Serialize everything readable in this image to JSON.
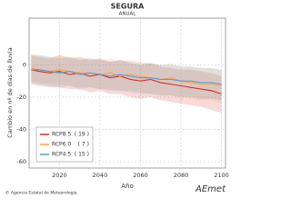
{
  "chart_data": {
    "type": "line",
    "title": "SEGURA",
    "subtitle": "ANUAL",
    "xlabel": "Año",
    "ylabel": "Cambio en nº de días de lluvia",
    "x": [
      2006,
      2010,
      2015,
      2020,
      2025,
      2030,
      2035,
      2040,
      2045,
      2050,
      2055,
      2060,
      2065,
      2070,
      2075,
      2080,
      2085,
      2090,
      2095,
      2100
    ],
    "xlim": [
      2005,
      2102
    ],
    "xticks": [
      2020,
      2040,
      2060,
      2080,
      2100
    ],
    "ylim": [
      -64,
      29
    ],
    "yticks": [
      -60,
      -40,
      -20,
      0
    ],
    "grid": true,
    "legend": "lower left",
    "series": [
      {
        "name": "RCP8.5",
        "count": "( 19 )",
        "color": "#d73027",
        "values": [
          -3,
          -4,
          -5,
          -4,
          -6,
          -5,
          -7,
          -6,
          -8,
          -7,
          -9,
          -10,
          -9,
          -11,
          -12,
          -13,
          -14,
          -15,
          -16,
          -18
        ],
        "lower": [
          -12,
          -13,
          -14,
          -14,
          -15,
          -15,
          -17,
          -16,
          -18,
          -18,
          -20,
          -21,
          -20,
          -22,
          -23,
          -24,
          -25,
          -26,
          -28,
          -30
        ],
        "upper": [
          6,
          5,
          4,
          6,
          4,
          5,
          3,
          4,
          2,
          3,
          1,
          0,
          1,
          -1,
          -2,
          -3,
          -3,
          -4,
          -5,
          -7
        ]
      },
      {
        "name": "RCP6.0",
        "count": "( 7 )",
        "color": "#f4a446",
        "values": [
          -2,
          -3,
          -4,
          -3,
          -4,
          -5,
          -5,
          -6,
          -5,
          -7,
          -6,
          -7,
          -8,
          -9,
          -8,
          -10,
          -11,
          -12,
          -12,
          -13
        ],
        "lower": [
          -10,
          -11,
          -12,
          -12,
          -13,
          -14,
          -14,
          -15,
          -15,
          -16,
          -16,
          -17,
          -18,
          -19,
          -19,
          -20,
          -21,
          -22,
          -22,
          -24
        ],
        "upper": [
          7,
          6,
          5,
          6,
          5,
          4,
          4,
          3,
          4,
          2,
          3,
          2,
          1,
          0,
          1,
          -1,
          -1,
          -2,
          -2,
          -3
        ]
      },
      {
        "name": "RCP4.5",
        "count": "( 15 )",
        "color": "#5a9bd4",
        "values": [
          -3,
          -3,
          -4,
          -5,
          -4,
          -6,
          -5,
          -6,
          -7,
          -6,
          -7,
          -8,
          -8,
          -9,
          -9,
          -10,
          -10,
          -11,
          -11,
          -12
        ],
        "lower": [
          -11,
          -12,
          -13,
          -14,
          -13,
          -15,
          -14,
          -15,
          -16,
          -16,
          -17,
          -18,
          -18,
          -19,
          -19,
          -20,
          -20,
          -21,
          -21,
          -22
        ],
        "upper": [
          6,
          6,
          5,
          4,
          5,
          3,
          4,
          3,
          2,
          3,
          2,
          1,
          1,
          0,
          0,
          -1,
          -1,
          -2,
          -2,
          -3
        ]
      }
    ]
  },
  "footer": {
    "credit": "© Agencia Estatal de Meteorología",
    "logo": "AEmet"
  }
}
